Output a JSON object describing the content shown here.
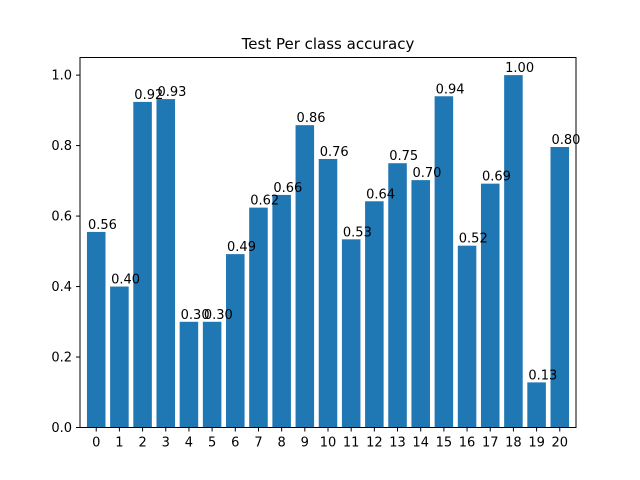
{
  "chart_data": {
    "type": "bar",
    "title": "Test Per class accuracy",
    "xlabel": "",
    "ylabel": "",
    "categories": [
      "0",
      "1",
      "2",
      "3",
      "4",
      "5",
      "6",
      "7",
      "8",
      "9",
      "10",
      "11",
      "12",
      "13",
      "14",
      "15",
      "16",
      "17",
      "18",
      "19",
      "20"
    ],
    "values": [
      0.555,
      0.4,
      0.924,
      0.932,
      0.3,
      0.3,
      0.492,
      0.624,
      0.66,
      0.858,
      0.762,
      0.534,
      0.642,
      0.75,
      0.702,
      0.94,
      0.516,
      0.692,
      1.0,
      0.128,
      0.796
    ],
    "value_labels": [
      "0.56",
      "0.40",
      "0.92",
      "0.93",
      "0.30",
      "0.30",
      "0.49",
      "0.62",
      "0.66",
      "0.86",
      "0.76",
      "0.53",
      "0.64",
      "0.75",
      "0.70",
      "0.94",
      "0.52",
      "0.69",
      "1.00",
      "0.13",
      "0.80"
    ],
    "ylim": [
      0.0,
      1.05
    ],
    "yticks": [
      0.0,
      0.2,
      0.4,
      0.6,
      0.8,
      1.0
    ],
    "ytick_labels": [
      "0.0",
      "0.2",
      "0.4",
      "0.6",
      "0.8",
      "1.0"
    ],
    "grid": false,
    "bar_color": "#1f77b4"
  }
}
